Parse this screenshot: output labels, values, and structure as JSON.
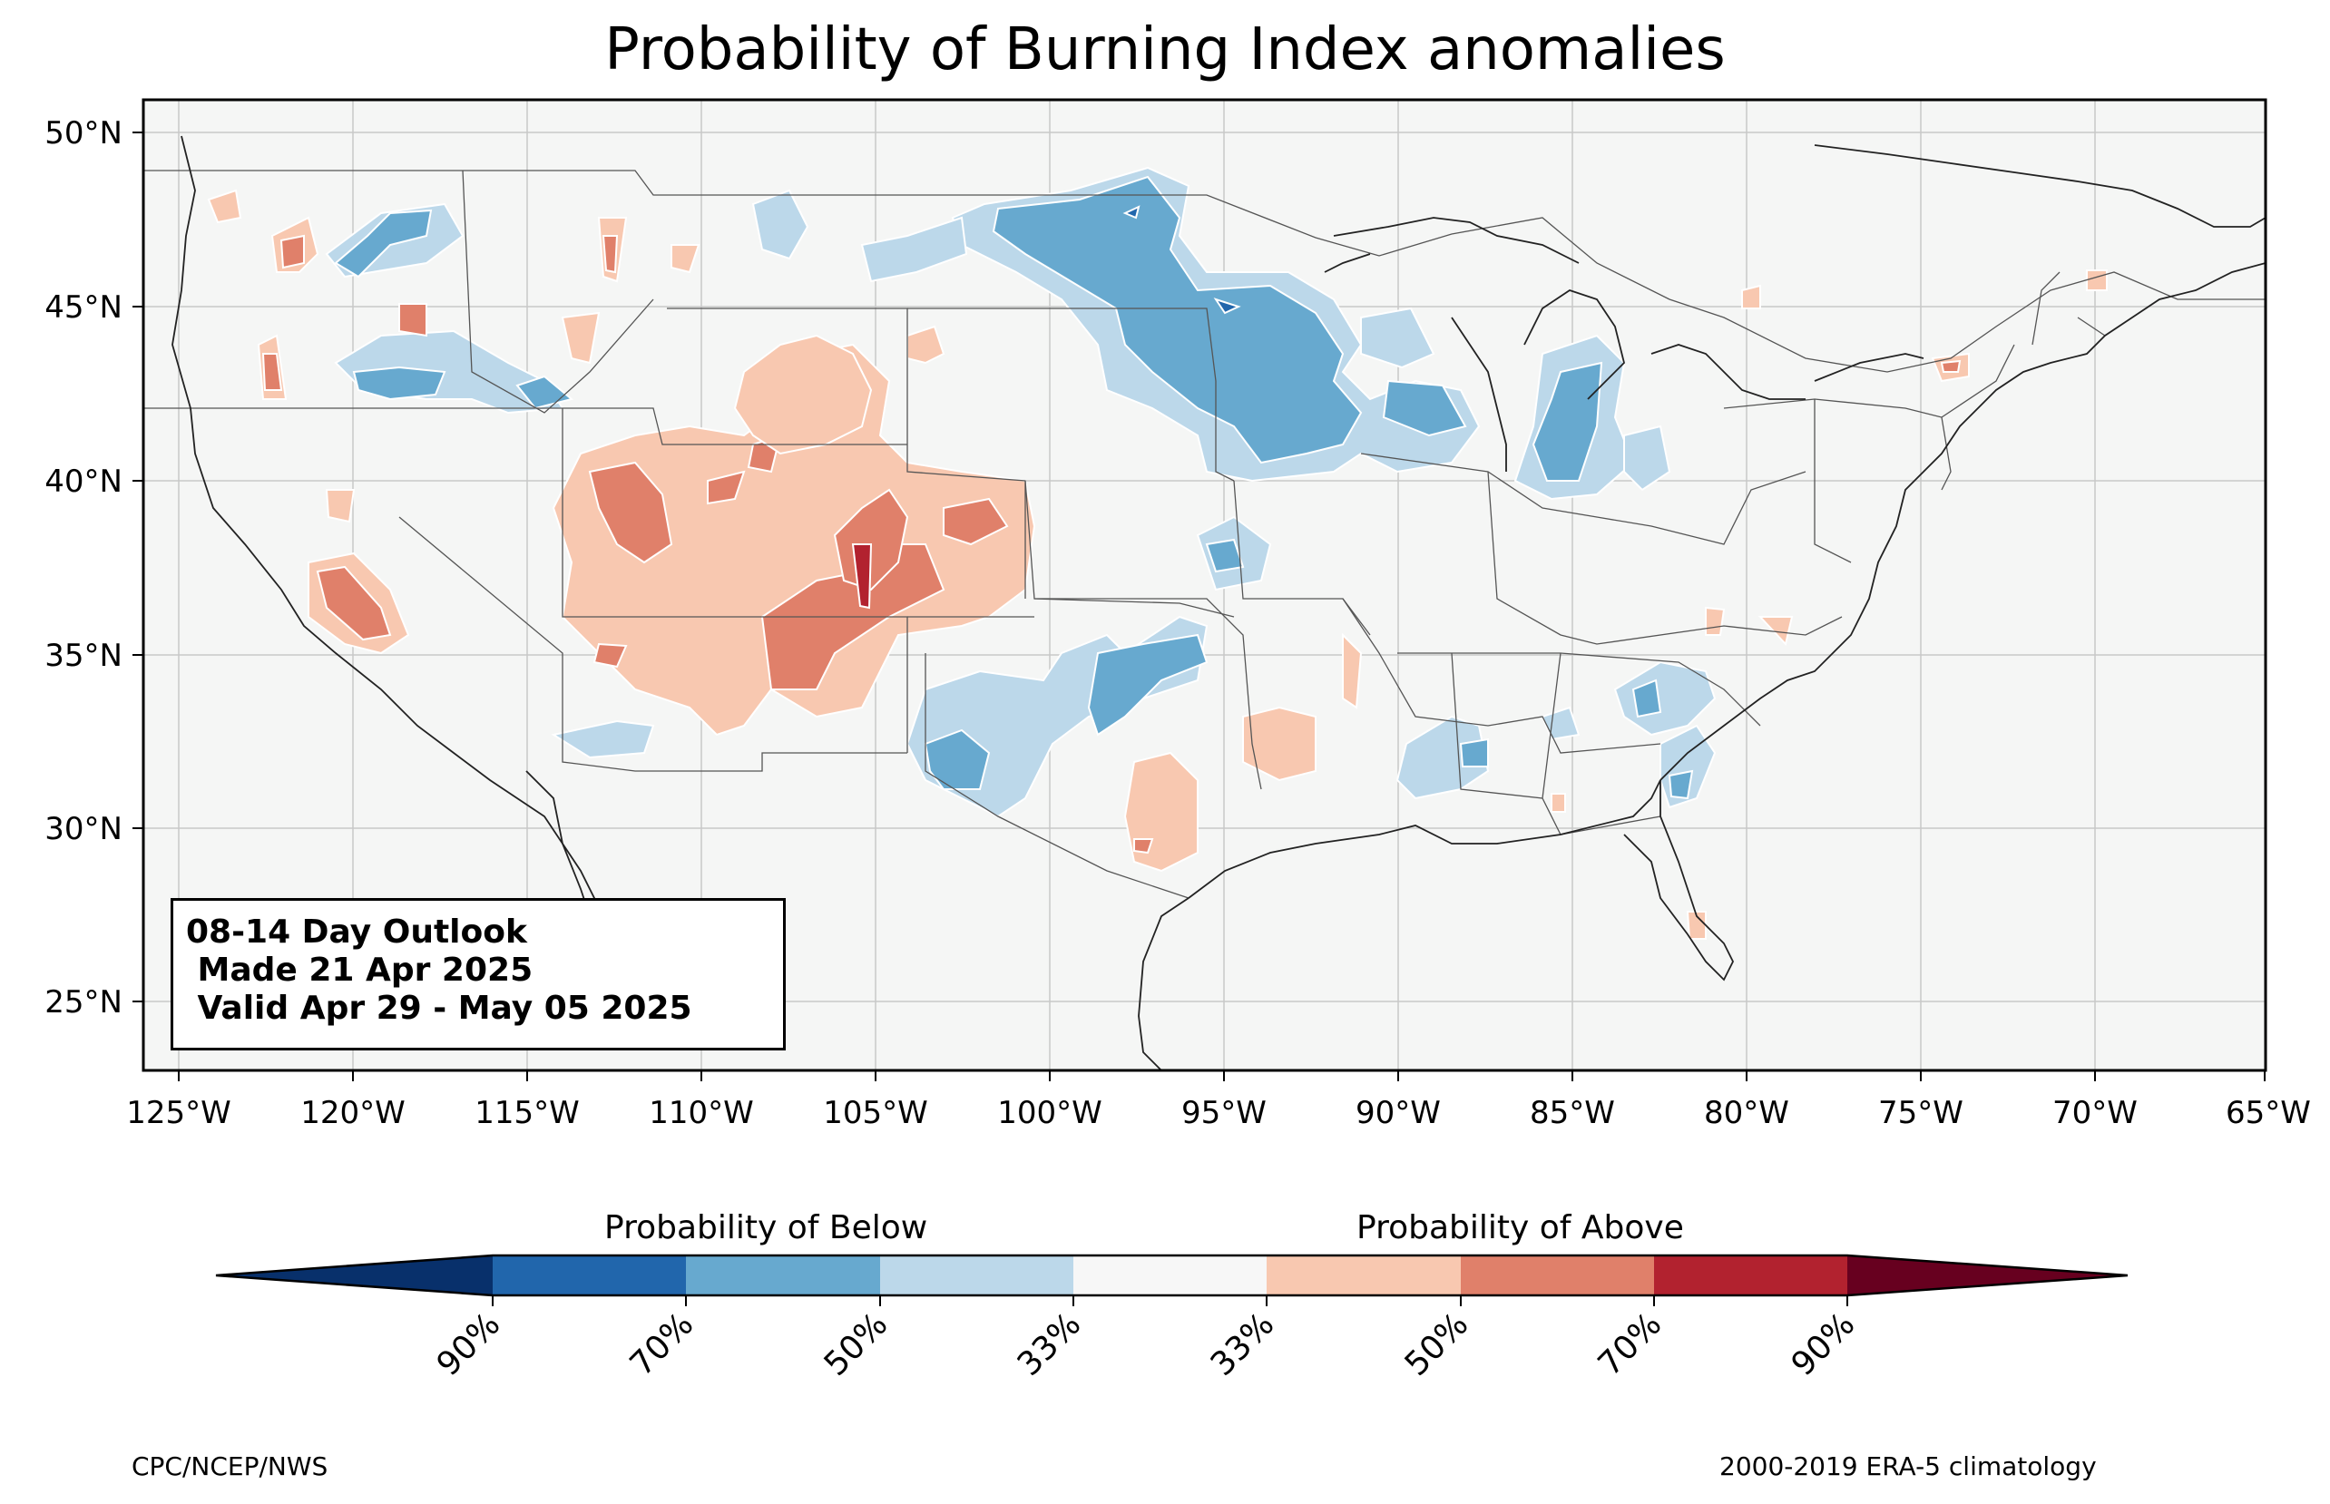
{
  "title": "Probability of Burning Index anomalies",
  "map": {
    "background_color": "#f5f6f5",
    "extent": {
      "lon_min": -126,
      "lon_max": -65,
      "lat_min": 23,
      "lat_max": 51
    },
    "lat_ticks": [
      "50°N",
      "45°N",
      "40°N",
      "35°N",
      "30°N",
      "25°N"
    ],
    "lon_ticks": [
      "125°W",
      "120°W",
      "115°W",
      "110°W",
      "105°W",
      "100°W",
      "95°W",
      "90°W",
      "85°W",
      "80°W",
      "75°W",
      "70°W",
      "65°W"
    ]
  },
  "outlook": {
    "line1": "08-14 Day Outlook",
    "line2": " Made 21 Apr 2025",
    "line3": " Valid Apr 29 - May 05 2025"
  },
  "colorbar": {
    "below_title": "Probability of Below",
    "above_title": "Probability of Above",
    "colors": [
      "#08306b",
      "#2166ac",
      "#67a9cf",
      "#bcd8ea",
      "#f7f7f7",
      "#f8c8b0",
      "#e0806a",
      "#b2222f",
      "#67001f"
    ],
    "tick_labels": [
      "90%",
      "70%",
      "50%",
      "33%",
      "33%",
      "50%",
      "70%",
      "90%"
    ]
  },
  "credits": {
    "left": "CPC/NCEP/NWS",
    "right": "2000-2019 ERA-5 climatology"
  }
}
